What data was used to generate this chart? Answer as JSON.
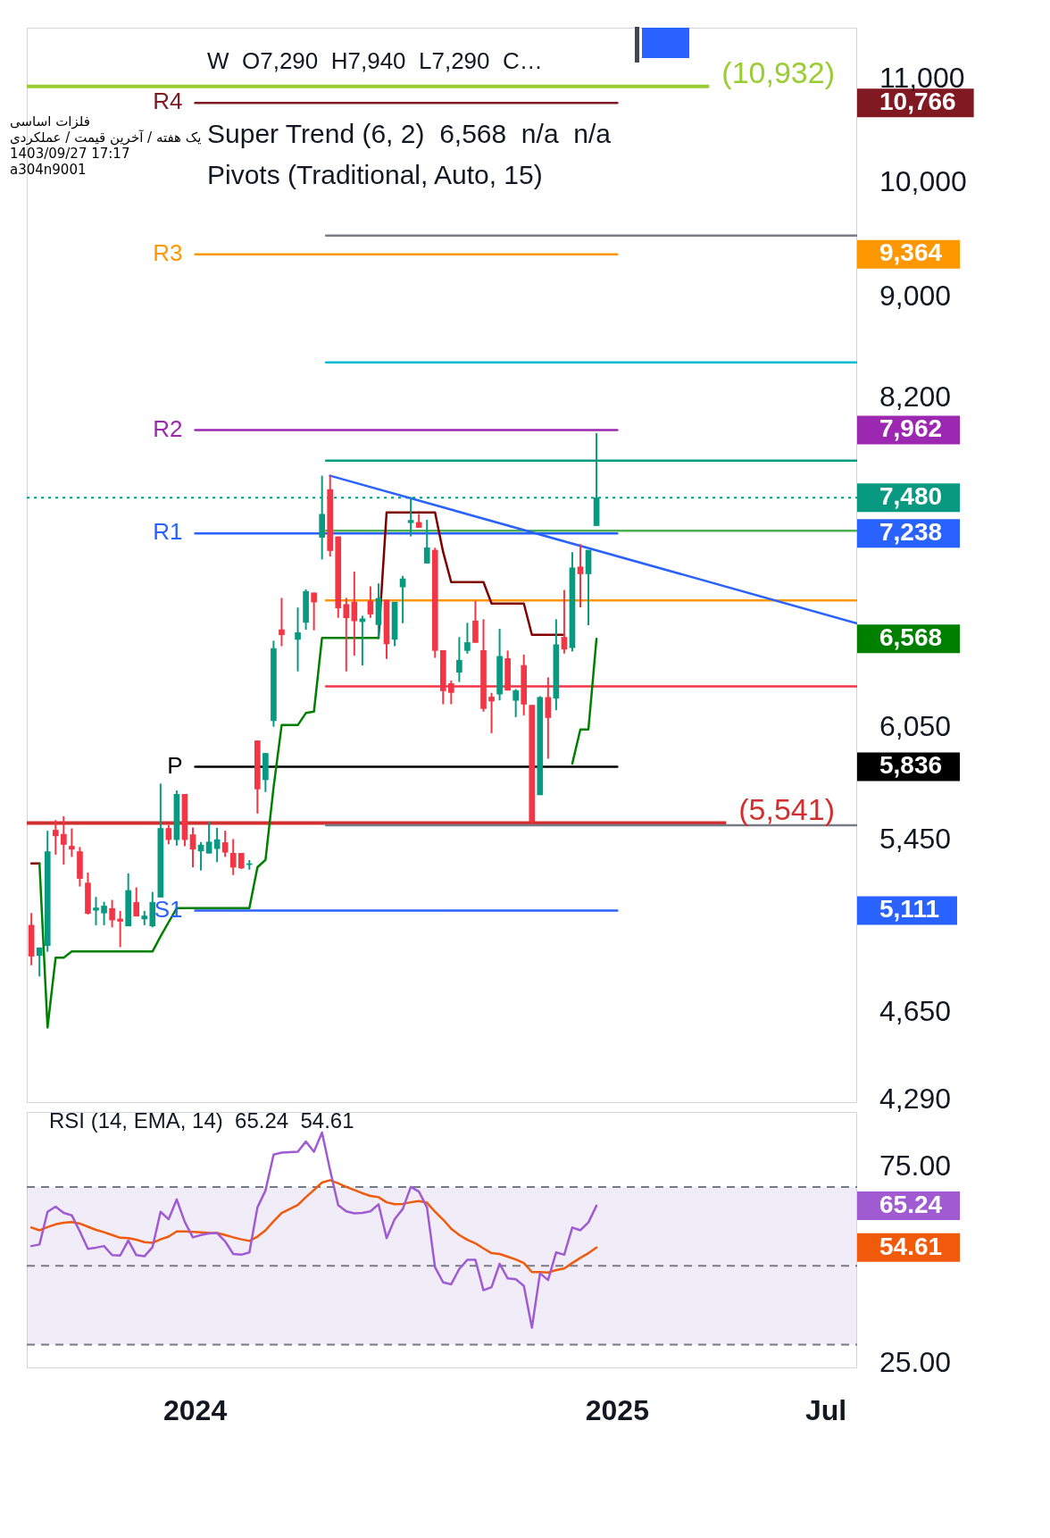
{
  "chart_data": [
    {
      "type": "candlestick",
      "title": "W  O7,290  H7,940  L7,290  C…",
      "subtitle": "فلزات اساسی\nیک هفته / آخرین قیمت / عملکردی\n1403/09/27 17:17\na304n9001",
      "x": [
        "2023-08-12",
        "2023-08-19",
        "2023-08-26",
        "2023-09-02",
        "2023-09-09",
        "2023-09-16",
        "2023-09-23",
        "2023-09-30",
        "2023-10-07",
        "2023-10-14",
        "2023-10-21",
        "2023-10-28",
        "2023-11-04",
        "2023-11-11",
        "2023-11-18",
        "2023-11-25",
        "2023-12-02",
        "2023-12-09",
        "2023-12-16",
        "2023-12-23",
        "2023-12-30",
        "2024-01-06",
        "2024-01-13",
        "2024-01-20",
        "2024-01-27",
        "2024-02-03",
        "2024-02-10",
        "2024-02-17",
        "2024-02-24",
        "2024-03-02",
        "2024-03-09",
        "2024-03-16",
        "2024-03-30",
        "2024-04-06",
        "2024-04-13",
        "2024-04-20",
        "2024-04-27",
        "2024-05-04",
        "2024-05-11",
        "2024-05-18",
        "2024-05-25",
        "2024-06-01",
        "2024-06-08",
        "2024-06-15",
        "2024-06-22",
        "2024-06-29",
        "2024-07-06",
        "2024-07-13",
        "2024-07-20",
        "2024-07-27",
        "2024-08-03",
        "2024-08-10",
        "2024-08-17",
        "2024-08-24",
        "2024-08-31",
        "2024-09-07",
        "2024-09-14",
        "2024-09-21",
        "2024-09-28",
        "2024-10-05",
        "2024-10-12",
        "2024-10-19",
        "2024-10-26",
        "2024-11-02",
        "2024-11-09",
        "2024-11-16",
        "2024-11-23",
        "2024-11-30",
        "2024-12-07",
        "2024-12-14"
      ],
      "ohlc": [
        [
          5043,
          5100,
          4860,
          4901
        ],
        [
          4904,
          4940,
          4810,
          4939
        ],
        [
          4949,
          5502,
          4921,
          5397
        ],
        [
          5505,
          5556,
          5382,
          5476
        ],
        [
          5484,
          5576,
          5333,
          5433
        ],
        [
          5424,
          5514,
          5371,
          5409
        ],
        [
          5397,
          5420,
          5226,
          5265
        ],
        [
          5243,
          5294,
          5093,
          5098
        ],
        [
          5113,
          5176,
          5043,
          5124
        ],
        [
          5100,
          5153,
          5043,
          5133
        ],
        [
          5121,
          5162,
          5033,
          5067
        ],
        [
          5072,
          5110,
          4942,
          5061
        ],
        [
          5039,
          5290,
          5039,
          5207
        ],
        [
          5150,
          5222,
          5085,
          5085
        ],
        [
          5072,
          5110,
          5043,
          5086
        ],
        [
          5039,
          5200,
          5033,
          5150
        ],
        [
          5175,
          5746,
          5175,
          5514
        ],
        [
          5514,
          5532,
          5434,
          5457
        ],
        [
          5457,
          5710,
          5427,
          5690
        ],
        [
          5690,
          5690,
          5424,
          5457
        ],
        [
          5482,
          5519,
          5320,
          5409
        ],
        [
          5400,
          5445,
          5304,
          5430
        ],
        [
          5389,
          5549,
          5389,
          5445
        ],
        [
          5412,
          5517,
          5345,
          5457
        ],
        [
          5442,
          5502,
          5371,
          5394
        ],
        [
          5389,
          5460,
          5282,
          5320
        ],
        [
          5389,
          5389,
          5311,
          5316
        ],
        [
          5333,
          5355,
          5308,
          5337
        ],
        [
          5978,
          5978,
          5590,
          5718
        ],
        [
          5767,
          5910,
          5702,
          5909
        ],
        [
          6090,
          6556,
          6056,
          6509
        ],
        [
          6623,
          6820,
          6523,
          6592
        ],
        [
          6564,
          6760,
          6373,
          6605
        ],
        [
          6668,
          6874,
          6623,
          6861
        ],
        [
          6852,
          6852,
          6619,
          6794
        ],
        [
          7212,
          7634,
          7066,
          7367
        ],
        [
          7537,
          7634,
          7085,
          7124
        ],
        [
          7216,
          7216,
          6696,
          6757
        ],
        [
          6779,
          6820,
          6373,
          6696
        ],
        [
          6794,
          6988,
          6467,
          6677
        ],
        [
          6672,
          6709,
          6408,
          6690
        ],
        [
          6800,
          6893,
          6696,
          6719
        ],
        [
          6654,
          6912,
          6577,
          6817
        ],
        [
          6807,
          6807,
          6447,
          6537
        ],
        [
          6564,
          6794,
          6523,
          6794
        ],
        [
          6889,
          6960,
          6663,
          6941
        ],
        [
          7310,
          7484,
          7218,
          7326
        ],
        [
          7312,
          7369,
          7278,
          7278
        ],
        [
          7042,
          7330,
          7042,
          7143
        ],
        [
          7127,
          7143,
          6453,
          6497
        ],
        [
          6497,
          6497,
          6183,
          6260
        ],
        [
          6302,
          6320,
          6183,
          6250
        ],
        [
          6368,
          6578,
          6311,
          6439
        ],
        [
          6497,
          6665,
          6479,
          6545
        ],
        [
          6677,
          6801,
          6545,
          6545
        ],
        [
          6497,
          6687,
          6141,
          6158
        ],
        [
          6224,
          6248,
          6020,
          6201
        ],
        [
          6241,
          6628,
          6205,
          6462
        ],
        [
          6449,
          6497,
          6263,
          6263
        ],
        [
          6205,
          6270,
          6110,
          6261
        ],
        [
          6408,
          6473,
          6120,
          6183
        ],
        [
          6178,
          6178,
          5541,
          5550
        ],
        [
          5687,
          6229,
          5687,
          6222
        ],
        [
          6222,
          6338,
          5880,
          6107
        ],
        [
          6217,
          6687,
          6149,
          6532
        ],
        [
          6577,
          6870,
          6479,
          6505
        ],
        [
          6514,
          7114,
          6491,
          7012
        ],
        [
          7018,
          7167,
          6761,
          6973
        ],
        [
          6973,
          7127,
          6650,
          7127
        ],
        [
          7290,
          7940,
          7290,
          7480
        ]
      ],
      "colors": [
        "#f23645",
        "#089981",
        "#089981",
        "#f23645",
        "#f23645",
        "#f23645",
        "#f23645",
        "#f23645",
        "#089981",
        "#089981",
        "#f23645",
        "#f23645",
        "#089981",
        "#f23645",
        "#089981",
        "#089981",
        "#089981",
        "#f23645",
        "#089981",
        "#f23645",
        "#f23645",
        "#089981",
        "#089981",
        "#089981",
        "#f23645",
        "#f23645",
        "#f23645",
        "#089981",
        "#f23645",
        "#089981",
        "#089981",
        "#f23645",
        "#089981",
        "#089981",
        "#f23645",
        "#089981",
        "#f23645",
        "#f23645",
        "#f23645",
        "#f23645",
        "#089981",
        "#f23645",
        "#089981",
        "#f23645",
        "#089981",
        "#089981",
        "#089981",
        "#f23645",
        "#089981",
        "#f23645",
        "#f23645",
        "#f23645",
        "#089981",
        "#089981",
        "#f23645",
        "#f23645",
        "#f23645",
        "#089981",
        "#f23645",
        "#089981",
        "#f23645",
        "#f23645",
        "#089981",
        "#f23645",
        "#089981",
        "#f23645",
        "#089981",
        "#f23645",
        "#089981",
        "#089981"
      ],
      "series": [
        {
          "type": "line",
          "color": "#008000",
          "values": [
            null,
            5338,
            4589,
            4894,
            4894,
            4922,
            4922,
            4922,
            4922,
            4922,
            4922,
            4922,
            4922,
            4922,
            4922,
            4922,
            4991,
            5057,
            5123,
            5123,
            5123,
            5123,
            5123,
            5123,
            5123,
            5123,
            5123,
            5123,
            5320,
            5356,
            5727,
            6065,
            6065,
            6133,
            6141,
            6573,
            6573,
            6573,
            6573,
            6573,
            6573,
            6573,
            6573,
            null,
            null,
            null,
            null,
            null,
            null,
            null,
            null,
            null,
            null,
            null,
            null,
            null,
            null,
            null,
            null,
            null,
            null,
            null,
            null,
            null,
            null,
            null,
            5853,
            6041,
            6041,
            6568
          ]
        },
        {
          "type": "line",
          "color": "#800000",
          "values": [
            5338,
            5338,
            null,
            null,
            null,
            null,
            null,
            null,
            null,
            null,
            null,
            null,
            null,
            null,
            null,
            null,
            null,
            null,
            null,
            null,
            null,
            null,
            null,
            null,
            null,
            null,
            null,
            null,
            null,
            null,
            null,
            null,
            null,
            null,
            null,
            null,
            null,
            null,
            null,
            null,
            null,
            null,
            6573,
            7380,
            7380,
            7380,
            7380,
            7380,
            7380,
            7380,
            7116,
            6920,
            6920,
            6920,
            6920,
            6920,
            6785,
            6785,
            6785,
            6785,
            6785,
            6592,
            6592,
            6592,
            6592,
            6592,
            null,
            null,
            null,
            null
          ]
        },
        {
          "type": "line",
          "color": "#2962ff",
          "x": [
            "2024-04-27",
            "2025-07-28"
          ],
          "values": [
            7634,
            6661
          ]
        },
        {
          "type": "line",
          "color": "#787b86",
          "x": [
            "2024-04-23T12:00",
            "2025-07-28"
          ],
          "values": [
            9527,
            9527
          ]
        },
        {
          "type": "line",
          "color": "#00bcd4",
          "x": [
            "2024-04-23T12:00",
            "2025-07-28"
          ],
          "values": [
            8475,
            8475
          ]
        },
        {
          "type": "line",
          "color": "#089981",
          "x": [
            "2024-04-23T12:00",
            "2025-07-28"
          ],
          "values": [
            7740,
            7740
          ]
        },
        {
          "type": "line",
          "color": "#4caf50",
          "x": [
            "2024-04-23T12:00",
            "2025-07-28"
          ],
          "values": [
            7256,
            7256
          ]
        },
        {
          "type": "line",
          "color": "#ff9800",
          "x": [
            "2024-04-23T12:00",
            "2025-07-28"
          ],
          "values": [
            6804,
            6804
          ]
        },
        {
          "type": "line",
          "color": "#f23645",
          "x": [
            "2024-04-23T12:00",
            "2025-07-28"
          ],
          "values": [
            6286,
            6286
          ]
        },
        {
          "type": "line",
          "color": "#787b86",
          "x": [
            "2024-04-23T12:00",
            "2025-07-28"
          ],
          "values": [
            5530,
            5530
          ]
        },
        {
          "type": "line",
          "name": "R4",
          "color": "#801922",
          "x": [
            "2024-01-01",
            "2025-01-01"
          ],
          "values": [
            10766,
            10766
          ]
        },
        {
          "type": "line",
          "name": "R3",
          "color": "#ff9800",
          "x": [
            "2024-01-01",
            "2025-01-01"
          ],
          "values": [
            9364,
            9364
          ]
        },
        {
          "type": "line",
          "name": "R2",
          "color": "#9c27b0",
          "x": [
            "2024-01-01",
            "2025-01-01"
          ],
          "values": [
            7962,
            7962
          ]
        },
        {
          "type": "line",
          "name": "R1",
          "color": "#2962ff",
          "x": [
            "2024-01-01",
            "2025-01-01"
          ],
          "values": [
            7238,
            7238
          ]
        },
        {
          "type": "line",
          "name": "P",
          "color": "#000000",
          "x": [
            "2024-01-01",
            "2025-01-01"
          ],
          "values": [
            5836,
            5836
          ]
        },
        {
          "type": "line",
          "name": "S1",
          "color": "#2962ff",
          "x": [
            "2024-01-01",
            "2025-01-01"
          ],
          "values": [
            5111,
            5111
          ]
        }
      ],
      "ref_lines": [
        {
          "axis": "y",
          "value": 10932,
          "label": "(10,932)",
          "color": "#9acd32"
        },
        {
          "axis": "y",
          "value": 5541,
          "label": "(5,541)",
          "color": "#d32f2f"
        },
        {
          "axis": "y",
          "value": 7480,
          "color": "#089981",
          "line_style": "dotted"
        }
      ],
      "annotations": [
        "Super Trend (6, 2)  6,568  n/a  n/a",
        "Pivots (Traditional, Auto, 15)"
      ],
      "xlim": [
        "2023-08-08",
        "2025-07-28"
      ],
      "ylim": [
        4280,
        11540
      ],
      "yticks": [
        {
          "value": 4290,
          "label": "4,290"
        },
        {
          "value": 4650,
          "label": "4,650"
        },
        {
          "value": 5111,
          "label": "5,111"
        },
        {
          "value": 5450,
          "label": "5,450"
        },
        {
          "value": 5836,
          "label": "5,836"
        },
        {
          "value": 6050,
          "label": "6,050"
        },
        {
          "value": 6568,
          "label": "6,568"
        },
        {
          "value": 7238,
          "label": "7,238"
        },
        {
          "value": 7480,
          "label": "7,480"
        },
        {
          "value": 7962,
          "label": "7,962"
        },
        {
          "value": 8200,
          "label": "8,200"
        },
        {
          "value": 9000,
          "label": "9,000"
        },
        {
          "value": 9364,
          "label": "9,364"
        },
        {
          "value": 10000,
          "label": "10,000"
        },
        {
          "value": 10766,
          "label": "10,766"
        },
        {
          "value": 11000,
          "label": "11,000"
        }
      ],
      "log": true,
      "tick_labels": "y"
    },
    {
      "type": "line",
      "title": "RSI (14, EMA, 14)  65.24  54.61",
      "x": [
        "2023-08-12",
        "2023-08-19",
        "2023-08-26",
        "2023-09-02",
        "2023-09-09",
        "2023-09-16",
        "2023-09-23",
        "2023-09-30",
        "2023-10-07",
        "2023-10-14",
        "2023-10-21",
        "2023-10-28",
        "2023-11-04",
        "2023-11-11",
        "2023-11-18",
        "2023-11-25",
        "2023-12-02",
        "2023-12-09",
        "2023-12-16",
        "2023-12-23",
        "2023-12-30",
        "2024-01-06",
        "2024-01-13",
        "2024-01-20",
        "2024-01-27",
        "2024-02-03",
        "2024-02-10",
        "2024-02-17",
        "2024-02-24",
        "2024-03-02",
        "2024-03-09",
        "2024-03-16",
        "2024-03-30",
        "2024-04-06",
        "2024-04-13",
        "2024-04-20",
        "2024-04-27",
        "2024-05-04",
        "2024-05-11",
        "2024-05-18",
        "2024-05-25",
        "2024-06-01",
        "2024-06-08",
        "2024-06-15",
        "2024-06-22",
        "2024-06-29",
        "2024-07-06",
        "2024-07-13",
        "2024-07-20",
        "2024-07-27",
        "2024-08-03",
        "2024-08-10",
        "2024-08-17",
        "2024-08-24",
        "2024-08-31",
        "2024-09-07",
        "2024-09-14",
        "2024-09-21",
        "2024-09-28",
        "2024-10-05",
        "2024-10-12",
        "2024-10-19",
        "2024-10-26",
        "2024-11-02",
        "2024-11-09",
        "2024-11-16",
        "2024-11-23",
        "2024-11-30",
        "2024-12-07",
        "2024-12-14"
      ],
      "series": [
        {
          "color": "#a05ad2",
          "values": [
            55.0,
            55.4,
            63.7,
            65.0,
            63.4,
            62.8,
            58.7,
            54.3,
            54.6,
            55.0,
            52.7,
            52.6,
            56.4,
            52.7,
            52.4,
            54.7,
            63.7,
            61.8,
            66.8,
            61.1,
            57.2,
            57.8,
            58.2,
            58.3,
            56.2,
            53.0,
            52.8,
            53.4,
            64.8,
            69.1,
            78.2,
            78.7,
            78.9,
            81.5,
            78.9,
            83.8,
            74.2,
            65.4,
            63.8,
            63.3,
            63.4,
            63.8,
            65.6,
            57.0,
            61.8,
            64.4,
            70.0,
            68.8,
            64.8,
            49.6,
            45.8,
            45.3,
            49.2,
            51.5,
            51.5,
            43.8,
            44.6,
            50.5,
            46.8,
            46.6,
            44.9,
            34.3,
            48.1,
            46.4,
            53.4,
            52.8,
            59.7,
            59.0,
            61.0,
            65.24
          ]
        },
        {
          "color": "#f05a0a",
          "values": [
            59.7,
            59.0,
            59.8,
            60.5,
            60.9,
            61.1,
            60.7,
            59.9,
            59.1,
            58.5,
            57.8,
            57.1,
            57.0,
            56.6,
            56.0,
            55.8,
            56.7,
            57.4,
            58.7,
            58.7,
            58.6,
            58.5,
            58.3,
            58.3,
            57.8,
            57.2,
            56.7,
            56.3,
            57.4,
            59.0,
            61.3,
            63.4,
            65.4,
            67.4,
            69.2,
            71.1,
            71.7,
            70.9,
            70.0,
            69.2,
            68.4,
            67.7,
            67.4,
            66.1,
            65.6,
            65.7,
            66.1,
            66.4,
            66.0,
            63.7,
            61.7,
            59.4,
            57.8,
            56.6,
            55.7,
            54.4,
            53.2,
            53.0,
            52.3,
            51.6,
            50.7,
            48.4,
            48.4,
            48.3,
            48.9,
            49.3,
            50.7,
            52.0,
            53.2,
            54.61
          ]
        }
      ],
      "ref_lines": [
        {
          "axis": "y",
          "value": 70,
          "color": "#787b86",
          "line_style": "dashed"
        },
        {
          "axis": "y",
          "value": 50,
          "color": "#787b86",
          "line_style": "dashed"
        },
        {
          "axis": "y",
          "value": 30,
          "color": "#787b86",
          "line_style": "dashed"
        }
      ],
      "bands": [
        {
          "axis": "y",
          "from": 30,
          "to": 70,
          "color": "#f0ecf8"
        }
      ],
      "xlim": [
        "2023-08-08",
        "2025-07-28"
      ],
      "xticks": [
        {
          "value": "2024-01-01",
          "label": "2024"
        },
        {
          "value": "2025-01-01",
          "label": "2025"
        },
        {
          "value": "2025-07-01",
          "label": "Jul"
        }
      ],
      "ylim": [
        24,
        89
      ],
      "yticks": [
        {
          "value": 25,
          "label": "25.00"
        },
        {
          "value": 54.61,
          "label": "54.61"
        },
        {
          "value": 65.24,
          "label": "65.24"
        },
        {
          "value": 75,
          "label": "75.00"
        }
      ]
    }
  ]
}
